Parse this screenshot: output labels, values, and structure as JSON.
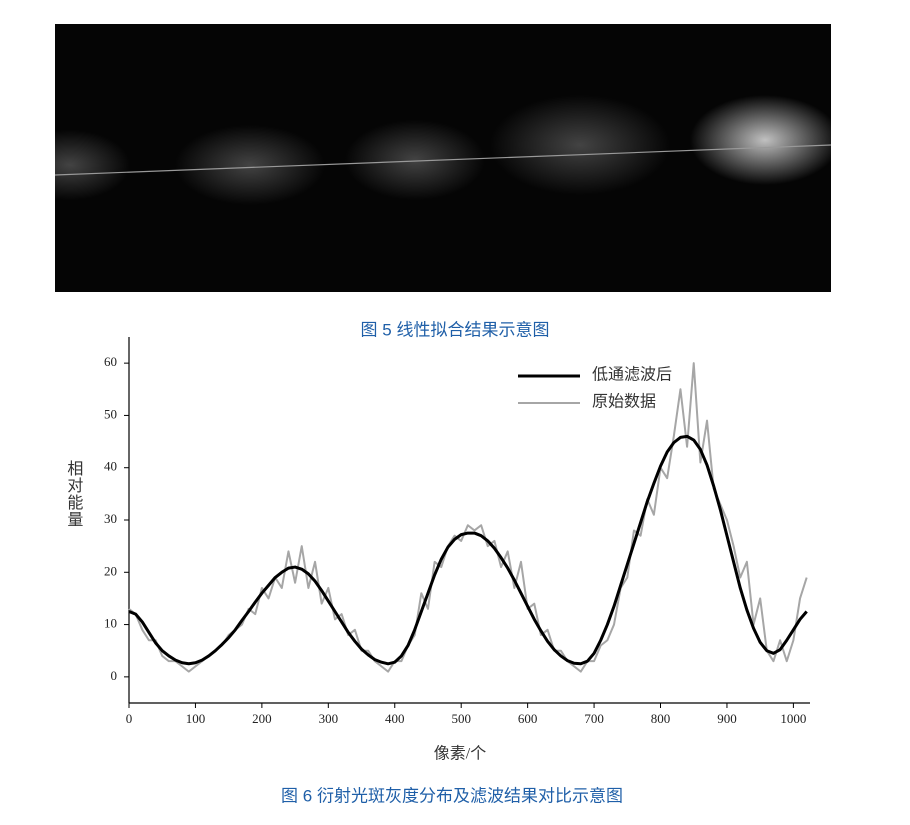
{
  "figure5": {
    "caption": "图 5  线性拟合结果示意图"
  },
  "chart_data": {
    "type": "line",
    "x_label": "像素/个",
    "y_label": "相对能量",
    "x": [
      0,
      10,
      20,
      30,
      40,
      50,
      60,
      70,
      80,
      90,
      100,
      110,
      120,
      130,
      140,
      150,
      160,
      170,
      180,
      190,
      200,
      210,
      220,
      230,
      240,
      250,
      260,
      270,
      280,
      290,
      300,
      310,
      320,
      330,
      340,
      350,
      360,
      370,
      380,
      390,
      400,
      410,
      420,
      430,
      440,
      450,
      460,
      470,
      480,
      490,
      500,
      510,
      520,
      530,
      540,
      550,
      560,
      570,
      580,
      590,
      600,
      610,
      620,
      630,
      640,
      650,
      660,
      670,
      680,
      690,
      700,
      710,
      720,
      730,
      740,
      750,
      760,
      770,
      780,
      790,
      800,
      810,
      820,
      830,
      840,
      850,
      860,
      870,
      880,
      890,
      900,
      910,
      920,
      930,
      940,
      950,
      960,
      970,
      980,
      990,
      1000,
      1010,
      1020
    ],
    "series": [
      {
        "name": "低通滤波后",
        "color": "#000000",
        "values": [
          12.5,
          12,
          10.5,
          8.5,
          6.5,
          5,
          4,
          3.2,
          2.7,
          2.5,
          2.7,
          3.2,
          4,
          5,
          6.2,
          7.5,
          9,
          10.8,
          12.5,
          14.3,
          16,
          17.5,
          19,
          20,
          20.8,
          21,
          20.6,
          19.7,
          18.3,
          16.5,
          14.5,
          12.5,
          10.5,
          8.5,
          6.8,
          5.3,
          4.2,
          3.3,
          2.8,
          2.5,
          2.8,
          4,
          6,
          9,
          12.5,
          16,
          19.5,
          22.5,
          24.8,
          26.3,
          27.2,
          27.5,
          27.5,
          27,
          26,
          24.6,
          22.8,
          20.8,
          18.5,
          16,
          13.5,
          11,
          8.8,
          6.8,
          5.2,
          4,
          3.1,
          2.6,
          2.5,
          3,
          4.5,
          7,
          10,
          13.5,
          17.5,
          21.5,
          25.5,
          29.5,
          33.5,
          37,
          40.3,
          43,
          44.8,
          45.8,
          46,
          45.3,
          43.5,
          40.5,
          36.5,
          32,
          27,
          22,
          17,
          12.8,
          9.3,
          6.6,
          5,
          4.5,
          5.2,
          7,
          9,
          11,
          12.5
        ]
      },
      {
        "name": "原始数据",
        "color": "#a6a6a6",
        "values": [
          13,
          12,
          9,
          7,
          7,
          4,
          3,
          3,
          2,
          1,
          2,
          3,
          4,
          5,
          6,
          8,
          9,
          10,
          13,
          12,
          17,
          15,
          19,
          17,
          24,
          18,
          25,
          17,
          22,
          14,
          17,
          11,
          12,
          8,
          9,
          5,
          5,
          3,
          2,
          1,
          3,
          3,
          6,
          8,
          16,
          13,
          22,
          21,
          25,
          27,
          26,
          29,
          28,
          29,
          25,
          26,
          21,
          24,
          17,
          22,
          13,
          14,
          8,
          9,
          5,
          5,
          3,
          2,
          1,
          3,
          3,
          6,
          7,
          10,
          17,
          19,
          28,
          27,
          34,
          31,
          40,
          38,
          46,
          55,
          44,
          60,
          41,
          49,
          36,
          33,
          30,
          25,
          19,
          22,
          10,
          15,
          5,
          3,
          7,
          3,
          7,
          15,
          19
        ]
      }
    ],
    "xlim": [
      0,
      1025
    ],
    "ylim": [
      -5,
      65
    ],
    "xticks": [
      0,
      100,
      200,
      300,
      400,
      500,
      600,
      700,
      800,
      900,
      1000
    ],
    "yticks": [
      0,
      10,
      20,
      30,
      40,
      50,
      60
    ],
    "legend": "upper-right"
  },
  "figure6": {
    "caption": "图 6  衍射光斑灰度分布及滤波结果对比示意图"
  }
}
